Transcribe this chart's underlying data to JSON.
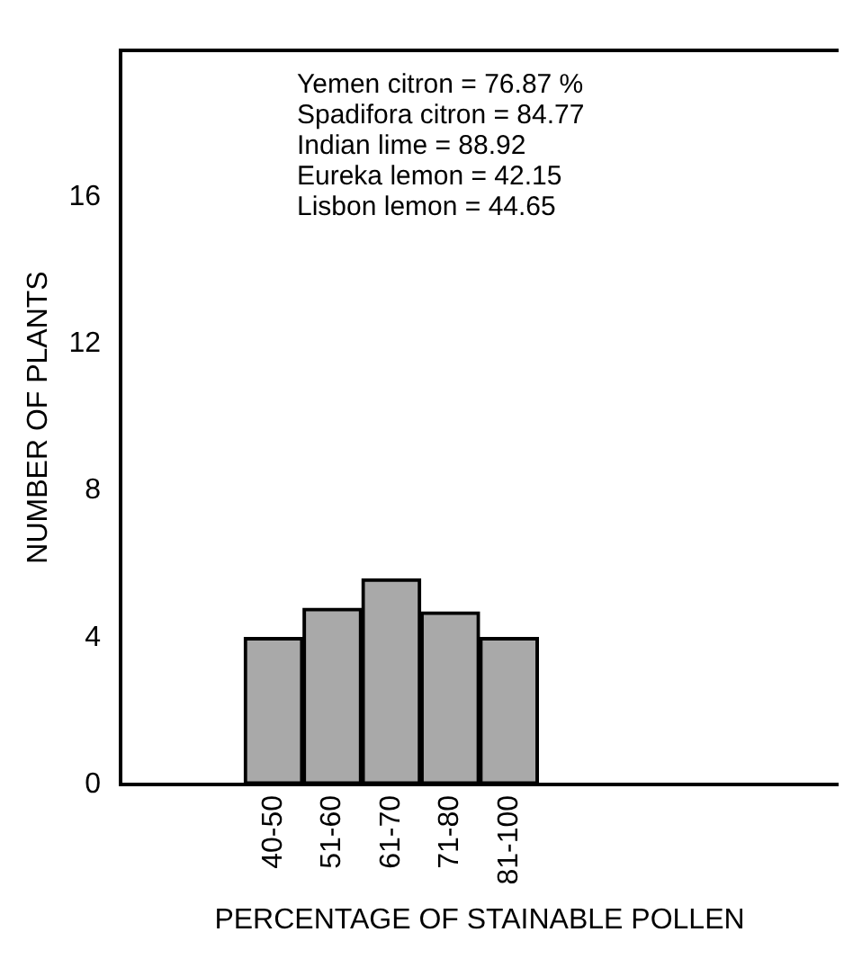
{
  "chart_data": {
    "type": "bar",
    "xlabel": "PERCENTAGE OF STAINABLE POLLEN",
    "ylabel": "NUMBER OF PLANTS",
    "categories": [
      "40-50",
      "51-60",
      "61-70",
      "71-80",
      "81-100"
    ],
    "values": [
      4.0,
      4.8,
      5.6,
      4.7,
      4.0
    ],
    "color": "#a9a9a9",
    "ylim": [
      0,
      20
    ],
    "yticks": [
      0,
      4,
      8,
      12,
      16
    ],
    "grid": false,
    "legend": false,
    "annotations": [
      "Yemen citron = 76.87 %",
      "Spadifora citron = 84.77",
      "Indian lime = 88.92",
      "Eureka lemon = 42.15",
      "Lisbon lemon = 44.65"
    ]
  }
}
